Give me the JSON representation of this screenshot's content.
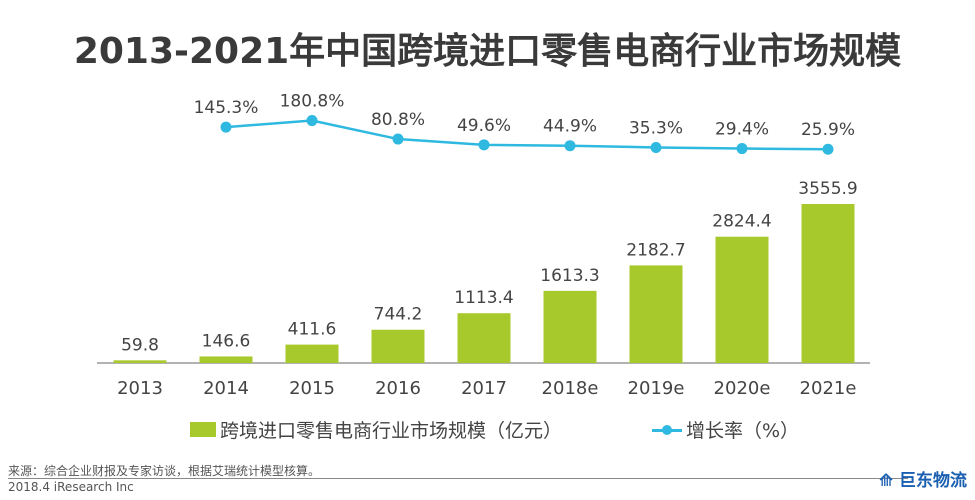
{
  "chart_data": {
    "title": "2013-2021年中国跨境进口零售电商行业市场规模",
    "type": "bar+line",
    "categories": [
      "2013",
      "2014",
      "2015",
      "2016",
      "2017",
      "2018e",
      "2019e",
      "2020e",
      "2021e"
    ],
    "series": [
      {
        "name": "跨境进口零售电商行业市场规模（亿元）",
        "type": "bar",
        "color": "#a8c92b",
        "values": [
          59.8,
          146.6,
          411.6,
          744.2,
          1113.4,
          1613.3,
          2182.7,
          2824.4,
          3555.9
        ],
        "labels": [
          "59.8",
          "146.6",
          "411.6",
          "744.2",
          "1113.4",
          "1613.3",
          "2182.7",
          "2824.4",
          "3555.9"
        ]
      },
      {
        "name": "增长率（%）",
        "type": "line",
        "color": "#2fb9e0",
        "values": [
          null,
          145.3,
          180.8,
          80.8,
          49.6,
          44.9,
          35.3,
          29.4,
          25.9
        ],
        "labels": [
          "",
          "145.3%",
          "180.8%",
          "80.8%",
          "49.6%",
          "44.9%",
          "35.3%",
          "29.4%",
          "25.9%"
        ]
      }
    ],
    "legend_position": "bottom",
    "grid": false
  },
  "footer": {
    "source": "来源：综合企业财报及专家访谈，根据艾瑞统计模型核算。",
    "credit": "2018.4 iResearch Inc",
    "watermark": "巨东物流"
  }
}
